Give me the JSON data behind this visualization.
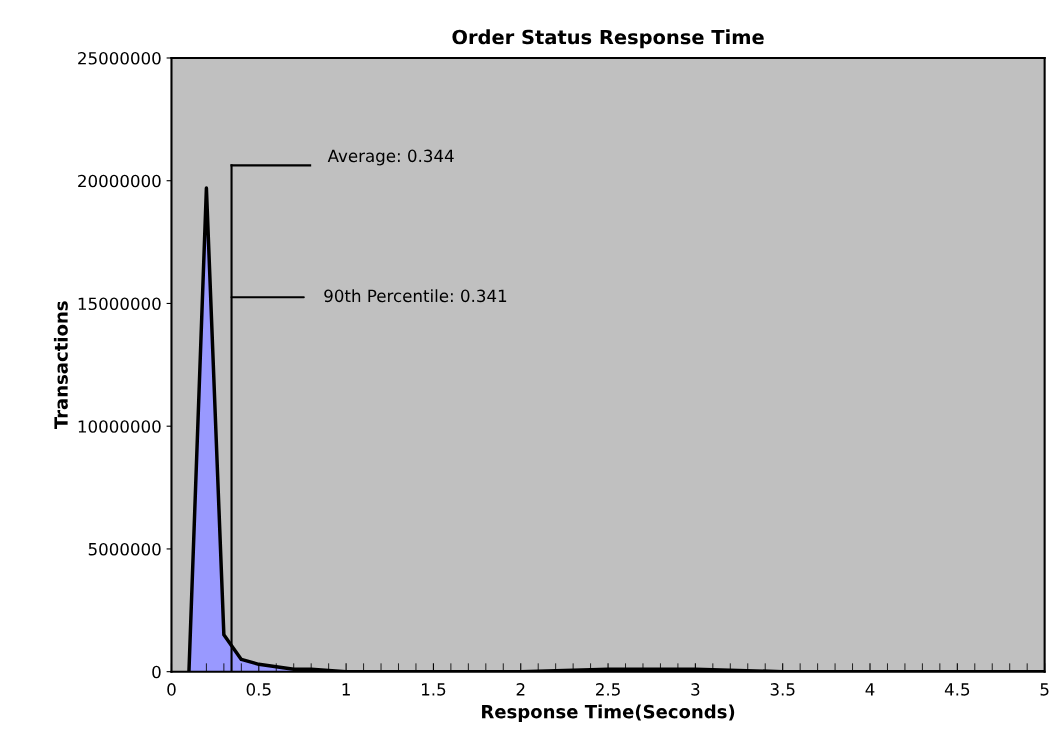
{
  "chart_data": {
    "type": "area",
    "title": "Order Status Response Time",
    "xlabel": "Response Time(Seconds)",
    "ylabel": "Transactions",
    "x": [
      0.1,
      0.2,
      0.3,
      0.4,
      0.5,
      0.6,
      0.7,
      0.8,
      0.9,
      1.0,
      1.2,
      1.5,
      2.0,
      2.5,
      2.8,
      3.0,
      3.5,
      4.0,
      4.5,
      5.0
    ],
    "series": [
      {
        "color": "#9999ff",
        "values": [
          0,
          19700000,
          1500000,
          500000,
          300000,
          200000,
          100000,
          100000,
          50000,
          0,
          0,
          0,
          0,
          100000,
          100000,
          100000,
          0,
          0,
          0,
          0
        ]
      }
    ],
    "xlim": [
      0,
      5
    ],
    "xticks": [
      0,
      0.5,
      1,
      1.5,
      2,
      2.5,
      3,
      3.5,
      4,
      4.5,
      5
    ],
    "ylim": [
      0,
      25000000
    ],
    "yticks": [
      0,
      5000000,
      10000000,
      15000000,
      20000000,
      25000000
    ],
    "ref_lines": [
      {
        "axis": "x",
        "value": 0.344,
        "label": "Average: 0.344",
        "color": "#000000"
      }
    ],
    "annotations": [
      "90th Percentile: 0.341"
    ],
    "grid": false,
    "legend": false
  }
}
